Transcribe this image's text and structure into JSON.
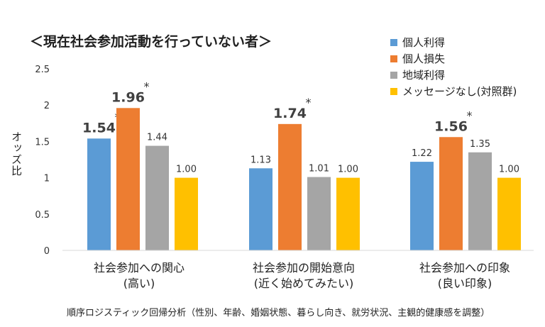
{
  "title": "＜現在社会参加活動を行っていない者＞",
  "footnote": "順序ロジスティック回帰分析（性別、年齢、婚姻状態、暮らし向き、就労状況、主観的健康感を調整）",
  "chart_data": {
    "type": "bar",
    "title": "＜現在社会参加活動を行っていない者＞",
    "ylabel": "オッズ比",
    "xlabel": "",
    "ylim": [
      0,
      2.5
    ],
    "yticks": [
      "0",
      "0.5",
      "1",
      "1.5",
      "2",
      "2.5"
    ],
    "grid": false,
    "legend_position": "top-right",
    "categories": [
      {
        "line1": "社会参加への関心",
        "line2": "(高い)"
      },
      {
        "line1": "社会参加の開始意向",
        "line2": "(近く始めてみたい)"
      },
      {
        "line1": "社会参加への印象",
        "line2": "(良い印象)"
      }
    ],
    "series": [
      {
        "name": "個人利得",
        "color": "#5B9BD5",
        "values": [
          1.54,
          1.13,
          1.22
        ],
        "labels": [
          "1.54",
          "1.13",
          "1.22"
        ],
        "significant": [
          true,
          false,
          false
        ]
      },
      {
        "name": "個人損失",
        "color": "#ED7D31",
        "values": [
          1.96,
          1.74,
          1.56
        ],
        "labels": [
          "1.96",
          "1.74",
          "1.56"
        ],
        "significant": [
          true,
          true,
          true
        ]
      },
      {
        "name": "地域利得",
        "color": "#A5A5A5",
        "values": [
          1.44,
          1.01,
          1.35
        ],
        "labels": [
          "1.44",
          "1.01",
          "1.35"
        ],
        "significant": [
          false,
          false,
          false
        ]
      },
      {
        "name": "メッセージなし(対照群)",
        "color": "#FFC000",
        "values": [
          1.0,
          1.0,
          1.0
        ],
        "labels": [
          "1.00",
          "1.00",
          "1.00"
        ],
        "significant": [
          false,
          false,
          false
        ]
      }
    ],
    "significance_marker": "*"
  }
}
